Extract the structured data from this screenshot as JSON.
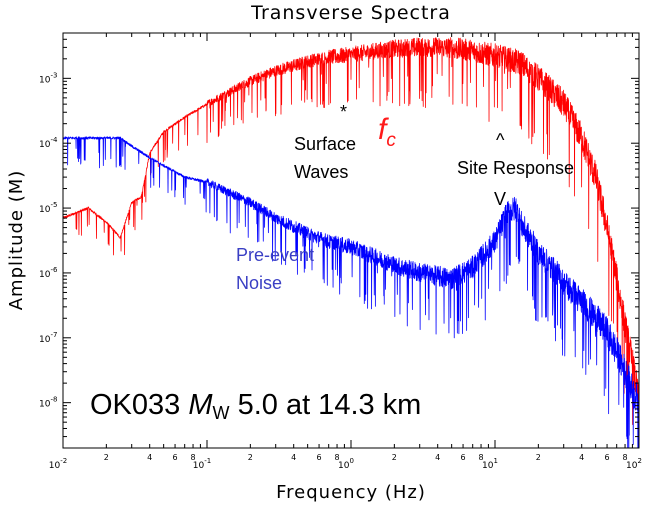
{
  "chart_data": {
    "type": "line",
    "title": "Transverse Spectra",
    "xlabel": "Frequency (Hz)",
    "ylabel": "Amplitude (M)",
    "x_scale": "log",
    "y_scale": "log",
    "xlim": [
      0.01,
      100
    ],
    "ylim": [
      2e-09,
      0.005
    ],
    "x_major_ticks": [
      {
        "base": "10",
        "exp": "-2"
      },
      {
        "base": "10",
        "exp": "-1"
      },
      {
        "base": "10",
        "exp": "0"
      },
      {
        "base": "10",
        "exp": "1"
      },
      {
        "base": "10",
        "exp": "2"
      }
    ],
    "x_minor_labels": [
      "2",
      "4",
      "6",
      "8"
    ],
    "y_major_ticks": [
      {
        "base": "10",
        "exp": "-3"
      },
      {
        "base": "10",
        "exp": "-4"
      },
      {
        "base": "10",
        "exp": "-5"
      },
      {
        "base": "10",
        "exp": "-6"
      },
      {
        "base": "10",
        "exp": "-7"
      },
      {
        "base": "10",
        "exp": "-8"
      }
    ],
    "grid": false,
    "series": [
      {
        "color": "#ff0000",
        "x": [
          0.01,
          0.015,
          0.02,
          0.025,
          0.03,
          0.035,
          0.04,
          0.05,
          0.07,
          0.1,
          0.2,
          0.3,
          0.5,
          0.7,
          1,
          1.5,
          2,
          3,
          5,
          7,
          10,
          15,
          20,
          30,
          40,
          50,
          60,
          70,
          80,
          90,
          100
        ],
        "y": [
          7e-06,
          1e-05,
          6e-06,
          3.5e-06,
          1.2e-05,
          1.5e-05,
          7e-05,
          0.00015,
          0.00025,
          0.0004,
          0.0009,
          0.0013,
          0.0018,
          0.0021,
          0.0023,
          0.0026,
          0.0028,
          0.003,
          0.0029,
          0.0026,
          0.0022,
          0.0017,
          0.001,
          0.0004,
          0.00012,
          3e-05,
          5e-06,
          8e-07,
          1.5e-07,
          4e-08,
          1e-08
        ]
      },
      {
        "color": "#0000ff",
        "x": [
          0.01,
          0.02,
          0.025,
          0.03,
          0.04,
          0.05,
          0.07,
          0.1,
          0.2,
          0.3,
          0.5,
          0.7,
          1,
          2,
          3,
          5,
          7,
          10,
          12,
          14,
          15,
          20,
          30,
          40,
          50,
          60,
          70,
          80,
          90,
          100
        ],
        "y": [
          0.00012,
          0.00012,
          0.00012,
          9e-05,
          6e-05,
          4.5e-05,
          3e-05,
          2.5e-05,
          1.2e-05,
          7e-06,
          4e-06,
          3e-06,
          2.5e-06,
          1.3e-06,
          1e-06,
          8e-07,
          1.2e-06,
          3e-06,
          8e-06,
          1e-05,
          6e-06,
          2e-06,
          7e-07,
          3.5e-07,
          2e-07,
          1.2e-07,
          6e-08,
          3e-08,
          1.5e-08,
          1e-08
        ]
      }
    ],
    "annotations": {
      "surface_star": "*",
      "surface_line1": "Surface",
      "surface_line2": "Waves",
      "fc_main": "f",
      "fc_sub": "c",
      "site_caret": "^",
      "site_label": "Site Response",
      "site_v": "V",
      "noise_line1": "Pre-event",
      "noise_line2": "Noise",
      "station_prefix": "OK033 ",
      "station_M": "M",
      "station_W": "W",
      "station_suffix": " 5.0 at 14.3 km"
    }
  }
}
